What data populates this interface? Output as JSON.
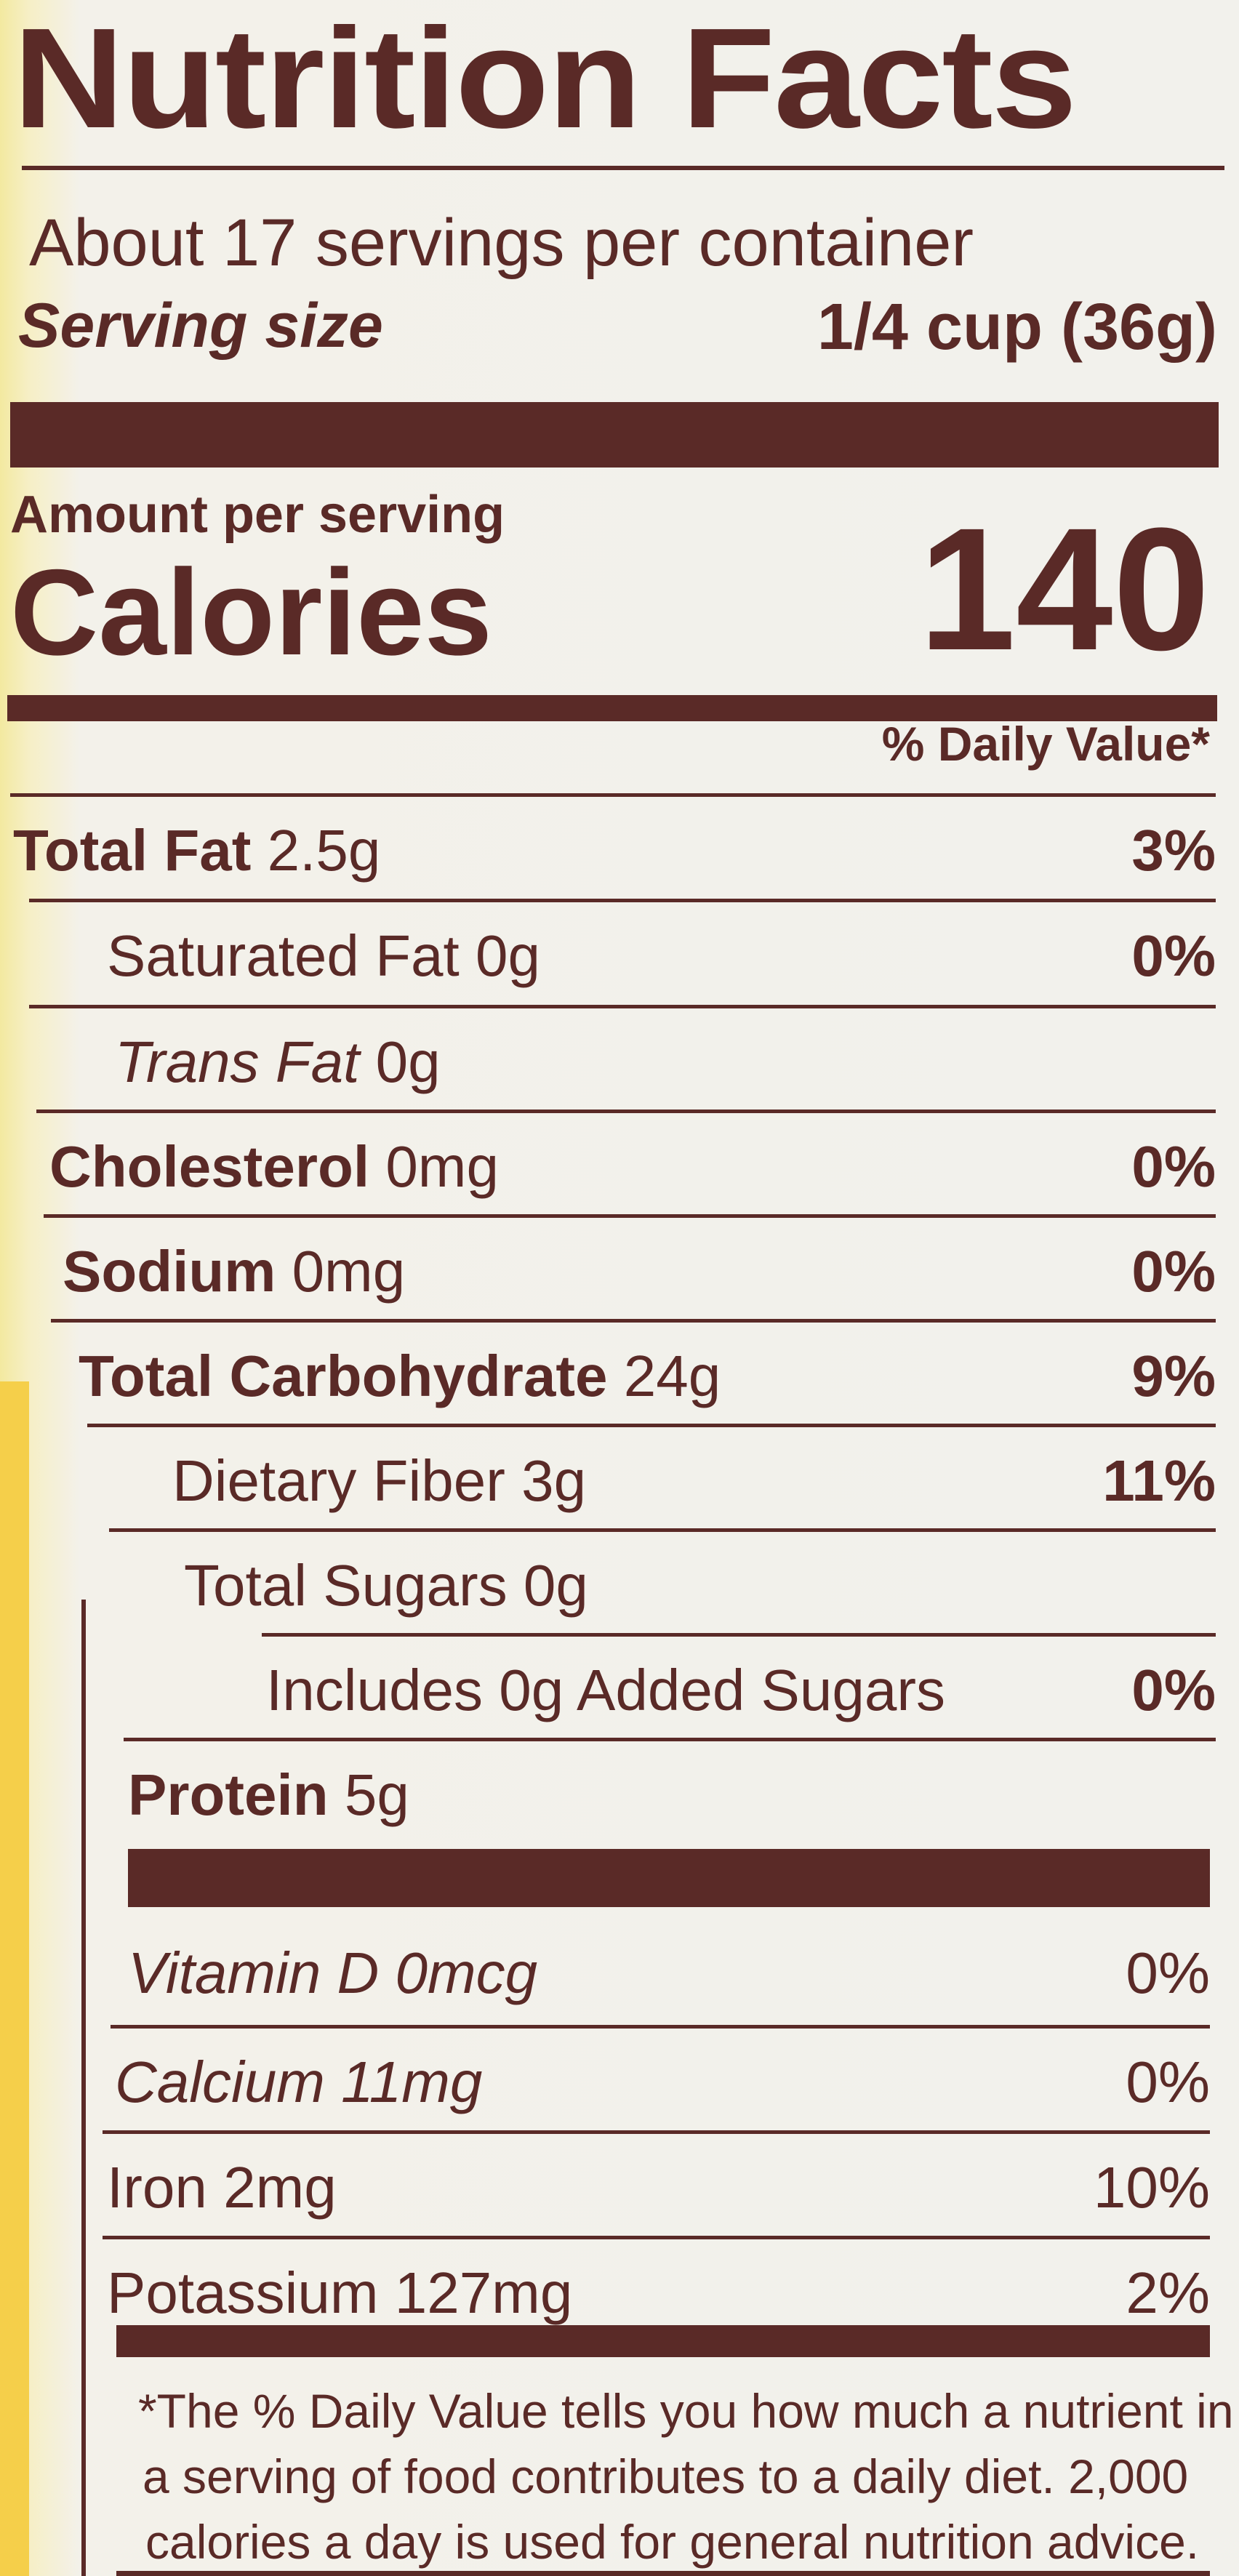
{
  "title": "Nutrition Facts",
  "servings_per_container": "About 17 servings per container",
  "serving_size_label": "Serving size",
  "serving_size_value": "1/4 cup (36g)",
  "amount_per_serving": "Amount per serving",
  "calories_label": "Calories",
  "calories_value": "140",
  "daily_value_header": "% Daily Value*",
  "nutrients": [
    {
      "name": "Total Fat",
      "amount": "2.5g",
      "dv": "3%"
    },
    {
      "name": "Saturated Fat",
      "amount": "0g",
      "dv": "0%"
    },
    {
      "name": "Trans Fat",
      "amount": "0g",
      "dv": ""
    },
    {
      "name": "Cholesterol",
      "amount": "0mg",
      "dv": "0%"
    },
    {
      "name": "Sodium",
      "amount": "0mg",
      "dv": "0%"
    },
    {
      "name": "Total Carbohydrate",
      "amount": "24g",
      "dv": "9%"
    },
    {
      "name": "Dietary Fiber",
      "amount": "3g",
      "dv": "11%"
    },
    {
      "name": "Total Sugars",
      "amount": "0g",
      "dv": ""
    },
    {
      "name": "Includes 0g Added Sugars",
      "amount": "",
      "dv": "0%"
    },
    {
      "name": "Protein",
      "amount": "5g",
      "dv": ""
    }
  ],
  "micronutrients": [
    {
      "label": "Vitamin D 0mcg",
      "dv": "0%"
    },
    {
      "label": "Calcium 11mg",
      "dv": "0%"
    },
    {
      "label": "Iron 2mg",
      "dv": "10%"
    },
    {
      "label": "Potassium 127mg",
      "dv": "2%"
    }
  ],
  "footnote": [
    "*The % Daily Value tells you how much a nutrient in",
    "a serving of food contributes to a daily diet. 2,000",
    "calories a day is used for general nutrition advice."
  ],
  "colors": {
    "ink": "#5a2a27",
    "background": "#f2f1ec",
    "package_yellow": "#f5cf4a"
  }
}
